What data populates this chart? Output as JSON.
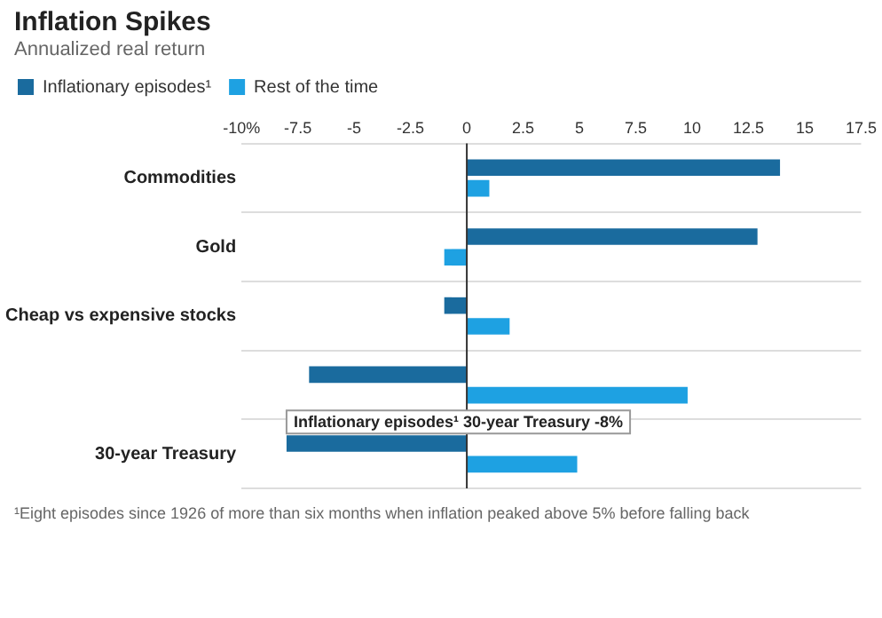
{
  "chart_data": {
    "type": "bar",
    "orientation": "horizontal",
    "title": "Inflation Spikes",
    "subtitle": "Annualized real return",
    "categories": [
      "Commodities",
      "Gold",
      "Cheap vs expensive stocks",
      null,
      "30-year Treasury"
    ],
    "series": [
      {
        "name": "Inflationary episodes¹",
        "color": "#1a6b9e",
        "values": [
          13.9,
          12.9,
          -1,
          -7,
          -8
        ]
      },
      {
        "name": "Rest of the time",
        "color": "#1ea1e2",
        "values": [
          1,
          -1,
          1.9,
          9.8,
          4.9
        ]
      }
    ],
    "xlim": [
      -10,
      17.5
    ],
    "xticks": [
      {
        "value": -10,
        "label": "-10%"
      },
      -7.5,
      -5,
      -2.5,
      0,
      2.5,
      5,
      7.5,
      10,
      12.5,
      15,
      17.5
    ],
    "grid": "y",
    "legend": "top left",
    "annotations": [
      {
        "text": "Inflationary episodes¹ 30-year Treasury -8%",
        "x": -8,
        "y": "30-year Treasury"
      },
      "¹Eight episodes since 1926 of more than six months when inflation peaked above 5% before falling back"
    ]
  }
}
